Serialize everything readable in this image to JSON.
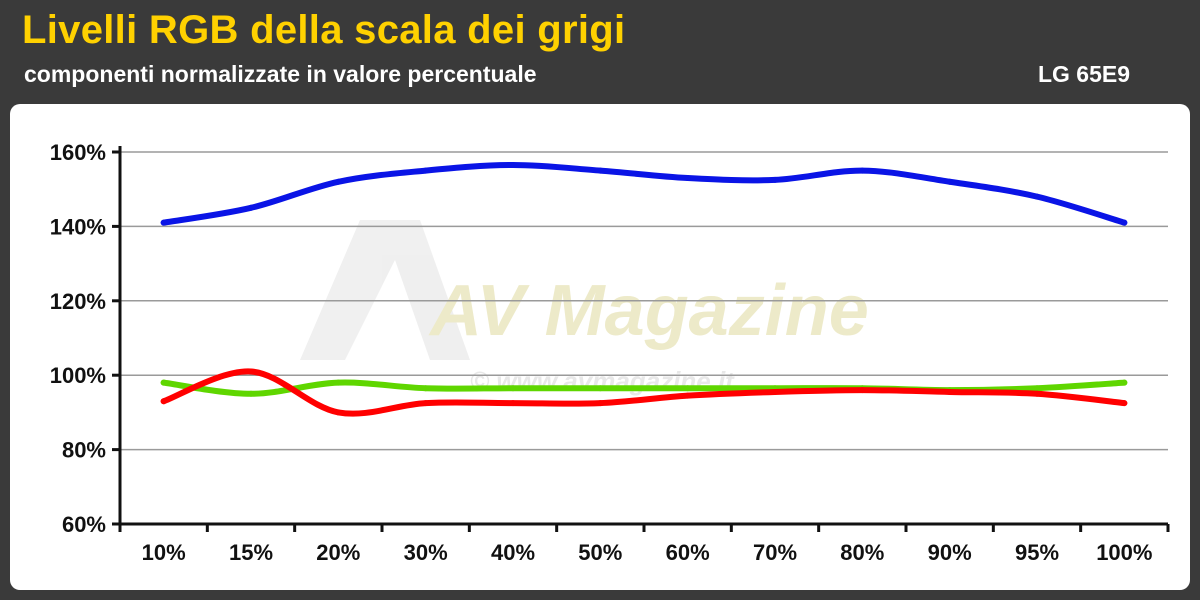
{
  "header": {
    "title": "Livelli RGB della scala dei grigi",
    "subtitle": "componenti normalizzate in valore percentuale",
    "model": "LG 65E9"
  },
  "watermark": {
    "logo_text": "AV Magazine",
    "url": "© www.avmagazine.it"
  },
  "colors": {
    "title": "#ffd100",
    "background": "#3a3a3a",
    "panel": "#ffffff",
    "grid": "#9a9a9a"
  },
  "chart_data": {
    "type": "line",
    "categories": [
      "10%",
      "15%",
      "20%",
      "30%",
      "40%",
      "50%",
      "60%",
      "70%",
      "80%",
      "90%",
      "95%",
      "100%"
    ],
    "y_ticks": [
      "60%",
      "80%",
      "100%",
      "120%",
      "140%",
      "160%"
    ],
    "ylim": [
      60,
      160
    ],
    "grid": true,
    "series": [
      {
        "name": "",
        "color": "#0a14e6",
        "values": [
          141,
          145,
          152,
          155,
          156.5,
          155,
          153,
          152.5,
          155,
          152,
          148,
          141
        ]
      },
      {
        "name": "",
        "color": "#5fd600",
        "values": [
          98,
          95,
          98,
          96.5,
          96.5,
          96.5,
          96.5,
          96.5,
          96.5,
          96,
          96.5,
          98
        ]
      },
      {
        "name": "",
        "color": "#ff0000",
        "values": [
          93,
          101,
          90,
          92.5,
          92.5,
          92.5,
          94.5,
          95.5,
          96,
          95.5,
          95,
          92.5
        ]
      }
    ]
  }
}
